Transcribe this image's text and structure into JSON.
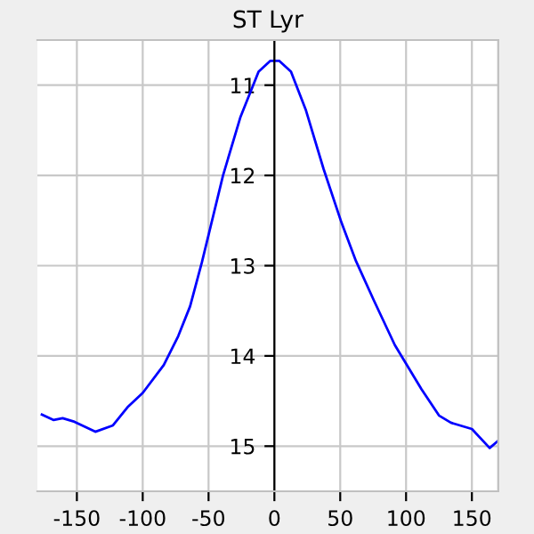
{
  "chart_data": {
    "type": "line",
    "title": "ST Lyr",
    "x": [
      -176.6,
      -167.6,
      -160.8,
      -151.8,
      -136,
      -122.6,
      -111,
      -100,
      -84,
      -73,
      -64,
      -55,
      -39,
      -25.7,
      -12,
      -3,
      3.6,
      12.6,
      24,
      37.4,
      50.9,
      62,
      75.7,
      91.5,
      111.8,
      125,
      134,
      150,
      163.5,
      170
    ],
    "series": [
      {
        "color": "#0000ff",
        "values": [
          14.65,
          14.71,
          14.69,
          14.73,
          14.84,
          14.77,
          14.56,
          14.41,
          14.1,
          13.78,
          13.45,
          12.96,
          12.0,
          11.35,
          10.85,
          10.73,
          10.73,
          10.85,
          11.28,
          11.93,
          12.52,
          12.95,
          13.39,
          13.88,
          14.37,
          14.66,
          14.74,
          14.81,
          15.02,
          14.94
        ]
      }
    ],
    "xlim": [
      -180,
      170
    ],
    "ylim": [
      15.5,
      10.5
    ],
    "xticks": [
      -150,
      -100,
      -50,
      0,
      50,
      100,
      150
    ],
    "yticks": [
      11,
      12,
      13,
      14,
      15
    ],
    "grid": true,
    "marker": "none",
    "line_style": "solid"
  }
}
